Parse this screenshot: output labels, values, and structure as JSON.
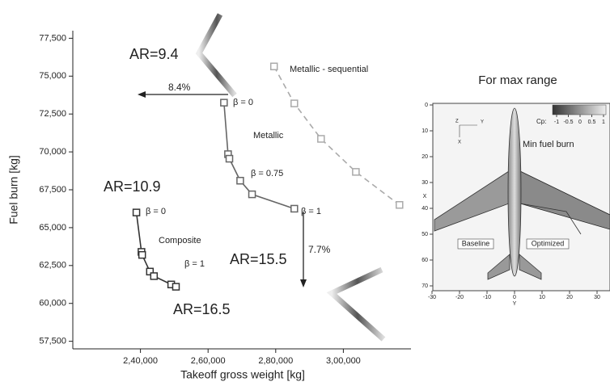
{
  "chart_data": {
    "type": "line",
    "x_label": "Takeoff gross weight [kg]",
    "y_label": "Fuel burn [kg]",
    "xlim": [
      220000,
      320000
    ],
    "ylim": [
      57000,
      78000
    ],
    "xticks": [
      {
        "value": 240000,
        "label": "2,40,000"
      },
      {
        "value": 260000,
        "label": "2,60,000"
      },
      {
        "value": 280000,
        "label": "2,80,000"
      },
      {
        "value": 300000,
        "label": "3,00,000"
      }
    ],
    "yticks": [
      {
        "value": 57500,
        "label": "57,500"
      },
      {
        "value": 60000,
        "label": "60,000"
      },
      {
        "value": 62500,
        "label": "62,500"
      },
      {
        "value": 65000,
        "label": "65,000"
      },
      {
        "value": 67500,
        "label": "67,500"
      },
      {
        "value": 70000,
        "label": "70,000"
      },
      {
        "value": 72500,
        "label": "72,500"
      },
      {
        "value": 75000,
        "label": "75,000"
      },
      {
        "value": 77500,
        "label": "77,500"
      }
    ],
    "series": [
      {
        "name": "Composite",
        "color": "#333333",
        "line_style": "solid",
        "x": [
          238800,
          240300,
          240500,
          242800,
          244000,
          249100,
          250500
        ],
        "values": [
          66000,
          63400,
          63200,
          62100,
          61800,
          61250,
          61100
        ]
      },
      {
        "name": "Metallic",
        "color": "#666666",
        "line_style": "solid",
        "x": [
          264700,
          265900,
          266300,
          269500,
          273000,
          285500
        ],
        "values": [
          73250,
          69850,
          69550,
          68100,
          67200,
          66250
        ]
      },
      {
        "name": "Metallic - sequential",
        "color": "#aaaaaa",
        "line_style": "dashed",
        "x": [
          279500,
          285500,
          293400,
          303700,
          316600
        ],
        "values": [
          75640,
          73200,
          70860,
          68680,
          66500
        ]
      }
    ],
    "annotations": [
      "AR=9.4",
      "AR=10.9",
      "AR=15.5",
      "AR=16.5",
      "8.4%",
      "7.7%",
      "β = 0",
      "β = 0",
      "β = 0.75",
      "β = 1",
      "β = 1"
    ]
  },
  "inset": {
    "title": "For max range",
    "labels": [
      "Min fuel burn",
      "Baseline",
      "Optimized"
    ],
    "colorbar_label": "Cp:",
    "colorbar_ticks": [
      -1,
      -0.5,
      0,
      0.5,
      1
    ],
    "x_label": "Y",
    "y_label": "X",
    "axis_glyph": [
      "Z",
      "Y",
      "X"
    ],
    "xticks": [
      -30,
      -20,
      -10,
      0,
      10,
      20,
      30
    ],
    "yticks": [
      0,
      10,
      20,
      30,
      40,
      50,
      60,
      70
    ]
  }
}
